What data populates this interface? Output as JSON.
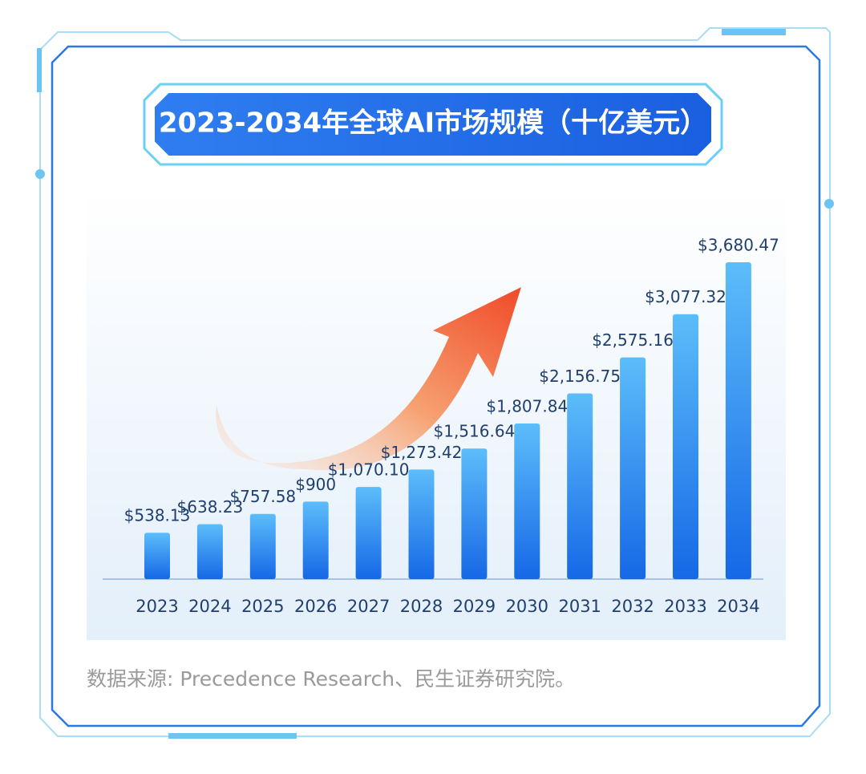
{
  "chart_data": {
    "type": "bar",
    "title": "2023-2034年全球AI市场规模（十亿美元）",
    "categories": [
      "2023",
      "2024",
      "2025",
      "2026",
      "2027",
      "2028",
      "2029",
      "2030",
      "2031",
      "2032",
      "2033",
      "2034"
    ],
    "values": [
      538.13,
      638.23,
      757.58,
      900,
      1070.1,
      1273.42,
      1516.64,
      1807.84,
      2156.75,
      2575.16,
      3077.32,
      3680.47
    ],
    "value_labels": [
      "$538.13",
      "$638.23",
      "$757.58",
      "$900",
      "$1,070.10",
      "$1,273.42",
      "$1,516.64",
      "$1,807.84",
      "$2,156.75",
      "$2,575.16",
      "$3,077.32",
      "$3,680.47"
    ],
    "color": "#2f8ef0",
    "source": "数据来源: Precedence Research、民生证券研究院。"
  }
}
